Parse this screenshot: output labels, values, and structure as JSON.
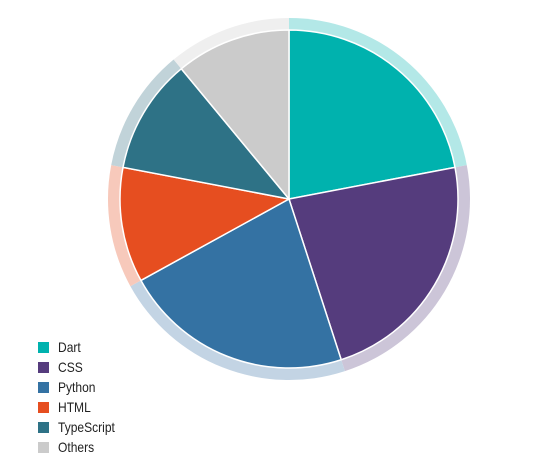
{
  "chart_data": {
    "type": "pie",
    "title": "",
    "categories": [
      "Dart",
      "CSS",
      "Python",
      "HTML",
      "TypeScript",
      "Others"
    ],
    "values": [
      22,
      23,
      22,
      11,
      11,
      11
    ],
    "colors": [
      "#00b2ae",
      "#553c7d",
      "#3472a3",
      "#e64e20",
      "#2e7286",
      "#cbcbcb"
    ],
    "highlight_colors": [
      "#b3e8e7",
      "#ccc5d8",
      "#c3d4e4",
      "#f7c9bb",
      "#c1d3d9",
      "#efefef"
    ],
    "legend_position": "bottom-left"
  }
}
